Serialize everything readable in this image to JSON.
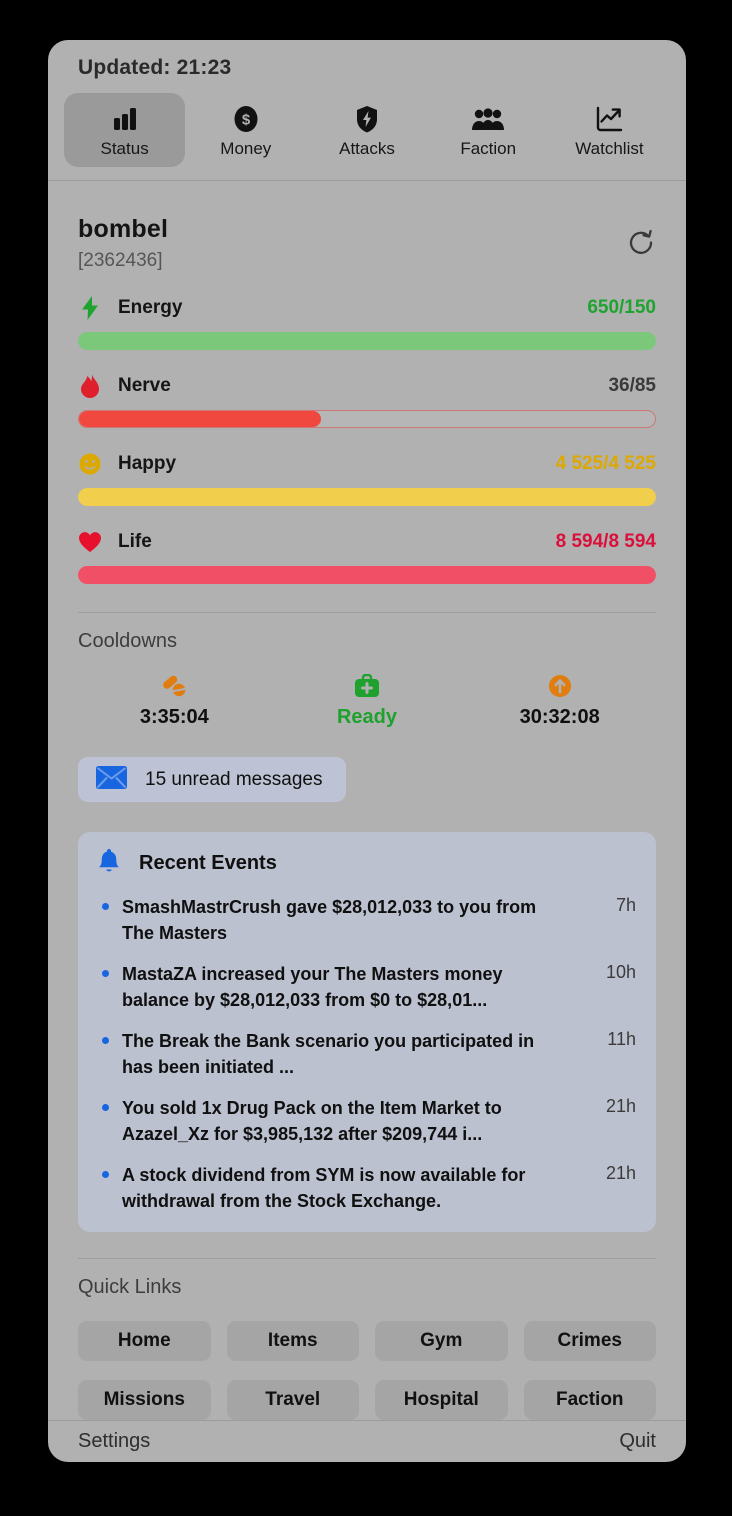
{
  "updated": "Updated: 21:23",
  "tabs": [
    {
      "label": "Status",
      "selected": true
    },
    {
      "label": "Money",
      "selected": false
    },
    {
      "label": "Attacks",
      "selected": false
    },
    {
      "label": "Faction",
      "selected": false
    },
    {
      "label": "Watchlist",
      "selected": false
    }
  ],
  "player": {
    "name": "bombel",
    "id": "[2362436]"
  },
  "vitals": [
    {
      "label": "Energy",
      "value": "650/150",
      "value_color": "#1fa330",
      "bar": {
        "pct": 100,
        "color": "#7bc87b"
      }
    },
    {
      "label": "Nerve",
      "value": "36/85",
      "value_color": "#3a3a3a",
      "bar": {
        "pct": 42,
        "color": "#f0483f"
      }
    },
    {
      "label": "Happy",
      "value": "4 525/4 525",
      "value_color": "#dda800",
      "bar": {
        "pct": 100,
        "color": "#f1ce4b"
      }
    },
    {
      "label": "Life",
      "value": "8 594/8 594",
      "value_color": "#db0f3c",
      "bar": {
        "pct": 100,
        "color": "#f04f66"
      }
    }
  ],
  "cooldowns": {
    "title": "Cooldowns",
    "items": [
      {
        "icon": "pills-icon",
        "value": "3:35:04",
        "ready": false
      },
      {
        "icon": "medkit-icon",
        "value": "Ready",
        "ready": true
      },
      {
        "icon": "booster-icon",
        "value": "30:32:08",
        "ready": false
      }
    ]
  },
  "messages": {
    "label": "15 unread messages"
  },
  "events": {
    "title": "Recent Events",
    "items": [
      {
        "text": "SmashMastrCrush gave $28,012,033 to you from The Masters",
        "time": "7h"
      },
      {
        "text": "MastaZA increased your The Masters money balance by $28,012,033 from $0 to $28,01...",
        "time": "10h"
      },
      {
        "text": "The Break the Bank scenario you participated in has been initiated ...",
        "time": "11h"
      },
      {
        "text": "You sold 1x Drug Pack on the Item Market to Azazel_Xz for $3,985,132 after $209,744 i...",
        "time": "21h"
      },
      {
        "text": "A stock dividend from SYM is now available for withdrawal from the Stock Exchange.",
        "time": "21h"
      }
    ]
  },
  "quick_links": {
    "title": "Quick Links",
    "buttons": [
      "Home",
      "Items",
      "Gym",
      "Crimes",
      "Missions",
      "Travel",
      "Hospital",
      "Faction"
    ]
  },
  "footer": {
    "settings": "Settings",
    "quit": "Quit"
  },
  "colors": {
    "accent_blue": "#1766e0",
    "green": "#1ea12d",
    "orange": "#e07d0e",
    "red": "#e01f2d"
  }
}
